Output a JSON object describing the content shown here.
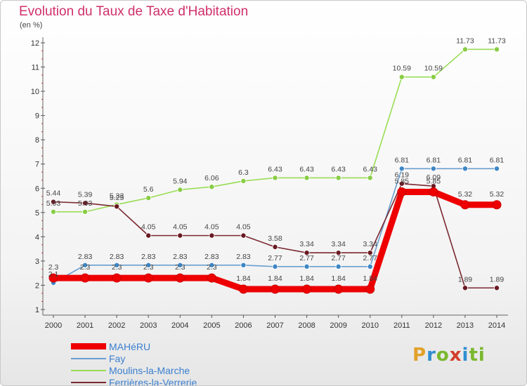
{
  "header": {
    "title": "Evolution du Taux de Taxe d'Habitation",
    "subtitle": "(en %)"
  },
  "logo": {
    "text": "Proxiti",
    "colors": [
      "#e2a12a",
      "#2f8fd1",
      "#7ab82e",
      "#d23f2a",
      "#2f8fd1",
      "#7ab82e",
      "#7ab82e"
    ]
  },
  "chart_data": {
    "type": "line",
    "x": [
      "2000",
      "2001",
      "2002",
      "2003",
      "2004",
      "2005",
      "2006",
      "2007",
      "2008",
      "2009",
      "2010",
      "2011",
      "2012",
      "2013",
      "2014"
    ],
    "ylim": [
      1,
      12
    ],
    "yticks": [
      1,
      2,
      3,
      4,
      5,
      6,
      7,
      8,
      9,
      10,
      11,
      12
    ],
    "grid": false,
    "legend_position": "bottom-left",
    "series": [
      {
        "name": "Moulins-la-Marche",
        "color": "#99dd55",
        "marker": "#88cc44",
        "values": [
          5.03,
          5.03,
          5.33,
          5.6,
          5.94,
          6.06,
          6.3,
          6.43,
          6.43,
          6.43,
          6.43,
          10.59,
          10.59,
          11.73,
          11.73
        ],
        "labels": [
          "5.03",
          "5.03",
          "5.33",
          "5.6",
          "5.94",
          "6.06",
          "6.3",
          "6.43",
          "6.43",
          "6.43",
          "6.43",
          "10.59",
          "10.59",
          "11.73",
          "11.73"
        ]
      },
      {
        "name": "Fay",
        "color": "#6a9fd0",
        "marker": "#3d86c6",
        "values": [
          2.1,
          2.83,
          2.83,
          2.83,
          2.83,
          2.83,
          2.83,
          2.77,
          2.77,
          2.77,
          2.77,
          6.81,
          6.81,
          6.81,
          6.81
        ],
        "labels": [
          "2.1",
          "2.83",
          "2.83",
          "2.83",
          "2.83",
          "2.83",
          "2.83",
          "2.77",
          "2.77",
          "2.77",
          "2.77",
          "6.81",
          "6.81",
          "6.81",
          "6.81"
        ]
      },
      {
        "name": "Ferrières-la-Verrerie",
        "color": "#7a2830",
        "marker": "#6a1a22",
        "values": [
          5.44,
          5.39,
          5.25,
          4.05,
          4.05,
          4.05,
          4.05,
          3.58,
          3.34,
          3.34,
          3.34,
          6.19,
          6.09,
          1.89,
          1.89
        ],
        "labels": [
          "5.44",
          "5.39",
          "5.25",
          "4.05",
          "4.05",
          "4.05",
          "4.05",
          "3.58",
          "3.34",
          "3.34",
          "3.34",
          "6.19",
          "6.09",
          "1.89",
          "1.89"
        ]
      },
      {
        "name": "MAHéRU",
        "color": "#ee0000",
        "marker": "#ee0000",
        "values": [
          2.3,
          2.3,
          2.3,
          2.3,
          2.3,
          2.3,
          1.84,
          1.84,
          1.84,
          1.84,
          1.84,
          5.85,
          5.85,
          5.32,
          5.32
        ],
        "labels": [
          "2.3",
          "2.3",
          "2.3",
          "2.3",
          "2.3",
          "2.3",
          "1.84",
          "1.84",
          "1.84",
          "1.84",
          "1.84",
          "5.85",
          "5.85",
          "5.32",
          "5.32"
        ]
      }
    ]
  },
  "legend": [
    {
      "name": "MAHéRU",
      "color": "#ee0000",
      "width": 9
    },
    {
      "name": "Fay",
      "color": "#6a9fd0",
      "width": 2
    },
    {
      "name": "Moulins-la-Marche",
      "color": "#99dd55",
      "width": 2
    },
    {
      "name": "Ferrières-la-Verrerie",
      "color": "#7a2830",
      "width": 2
    }
  ]
}
